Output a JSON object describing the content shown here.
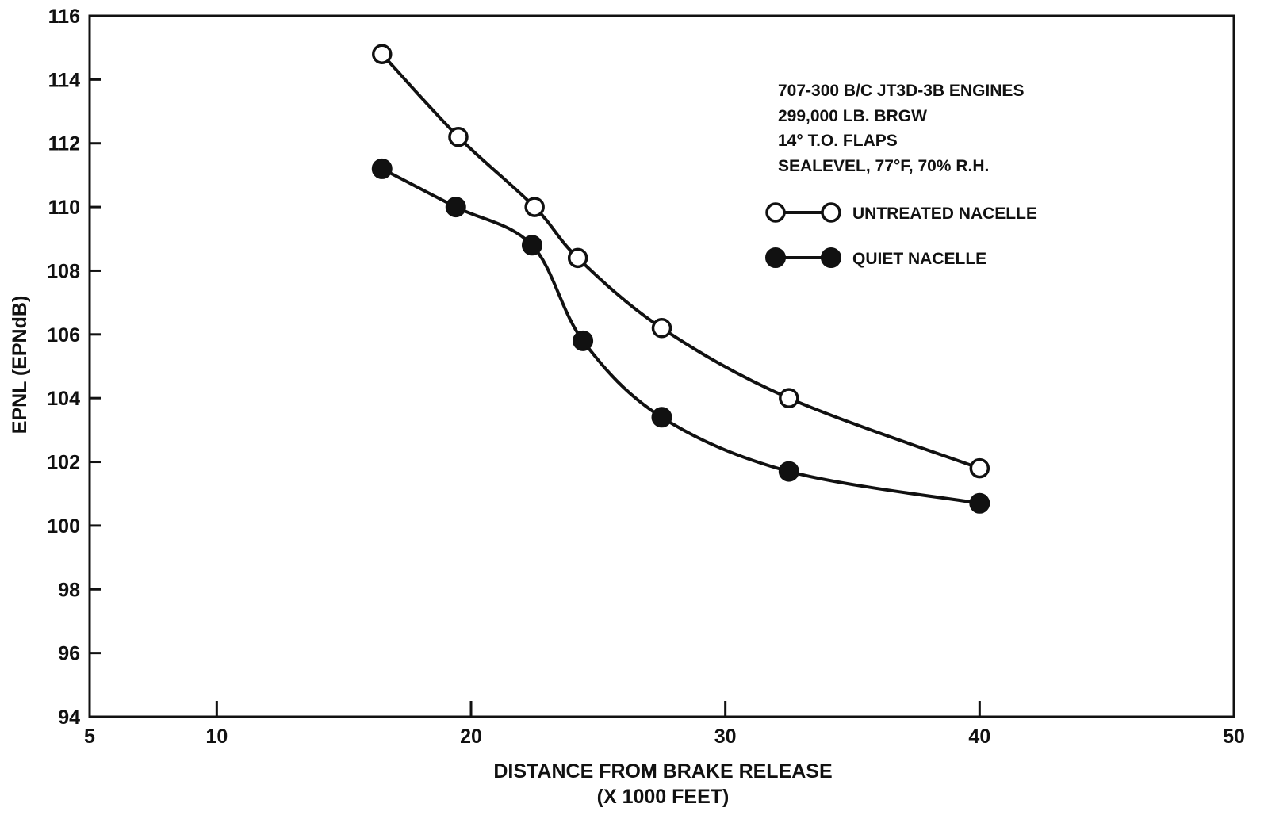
{
  "chart_data": {
    "type": "line",
    "xlabel": "DISTANCE FROM BRAKE RELEASE",
    "xlabel_units": "(X 1000 FEET)",
    "ylabel": "EPNL (EPNdB)",
    "xlim": [
      5,
      50
    ],
    "ylim": [
      94,
      116
    ],
    "x_ticks": [
      5,
      10,
      20,
      30,
      40,
      50
    ],
    "y_ticks": [
      94,
      96,
      98,
      100,
      102,
      104,
      106,
      108,
      110,
      112,
      114,
      116
    ],
    "grid": false,
    "legend_position": "top-right",
    "annotations": [
      "707-300 B/C JT3D-3B ENGINES",
      "299,000 LB. BRGW",
      "14° T.O. FLAPS",
      "SEALEVEL, 77°F, 70% R.H."
    ],
    "series": [
      {
        "name": "UNTREATED NACELLE",
        "marker": "open-circle",
        "x": [
          16.5,
          19.5,
          22.5,
          24.2,
          27.5,
          32.5,
          40.0
        ],
        "y": [
          114.8,
          112.2,
          110.0,
          108.4,
          106.2,
          104.0,
          101.8
        ]
      },
      {
        "name": "QUIET NACELLE",
        "marker": "filled-circle",
        "x": [
          16.5,
          19.4,
          22.4,
          24.4,
          27.5,
          32.5,
          40.0
        ],
        "y": [
          111.2,
          110.0,
          108.8,
          105.8,
          103.4,
          101.7,
          100.7
        ]
      }
    ]
  }
}
